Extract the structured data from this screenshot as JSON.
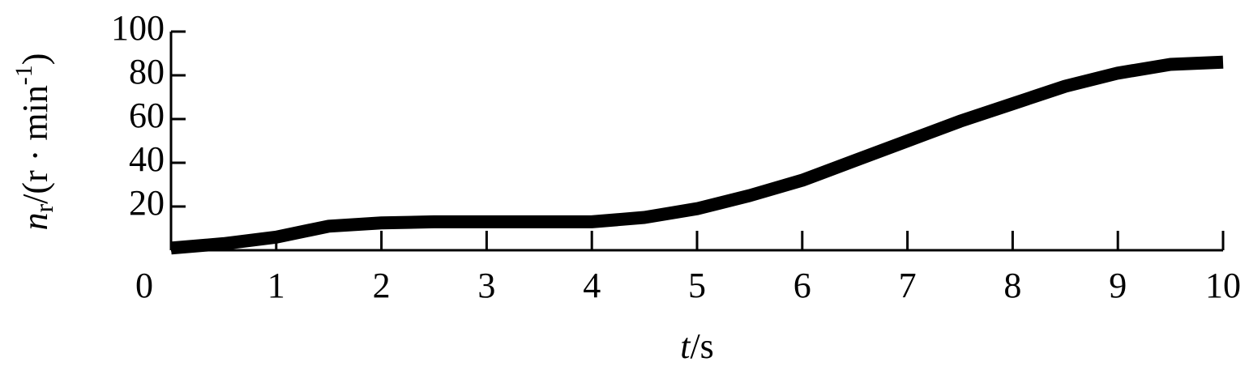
{
  "chart_data": {
    "type": "line",
    "xlabel": {
      "symbol": "t",
      "unit": "/s"
    },
    "ylabel": {
      "symbol": "n",
      "subscript": "r",
      "unit": "/(r · min",
      "exponent": "-1",
      "close": ")"
    },
    "x": [
      0,
      0.5,
      1,
      1.5,
      2,
      2.5,
      3,
      3.5,
      4,
      4.5,
      5,
      5.5,
      6,
      6.5,
      7,
      7.5,
      8,
      8.5,
      9,
      9.5,
      10
    ],
    "series": [
      {
        "color": "#000000",
        "values": [
          1,
          3,
          6,
          11,
          12.5,
          13,
          13,
          13,
          13,
          15,
          19,
          25,
          32,
          41,
          50,
          59,
          67,
          75,
          81,
          85,
          86
        ]
      }
    ],
    "xlim": [
      0,
      10
    ],
    "xticks": [
      0,
      1,
      2,
      3,
      4,
      5,
      6,
      7,
      8,
      9,
      10
    ],
    "ylim": [
      0,
      100
    ],
    "yticks": [
      20,
      40,
      60,
      80,
      100
    ],
    "grid": false
  }
}
